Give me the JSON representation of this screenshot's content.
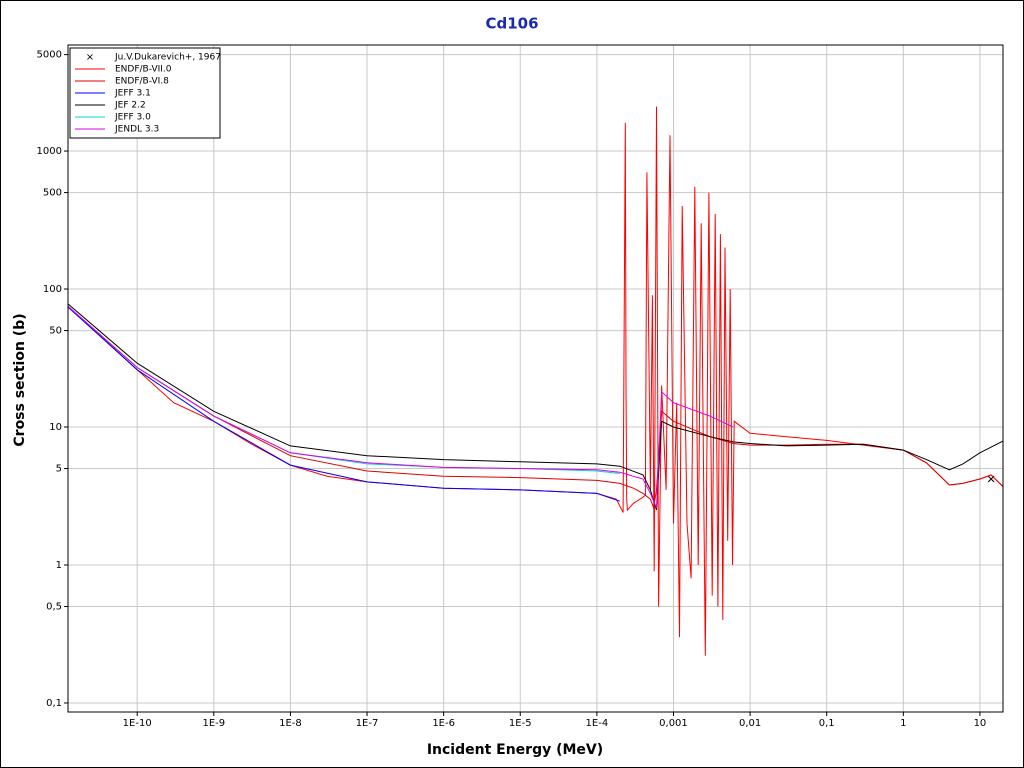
{
  "chart_data": {
    "type": "line",
    "title": "Cd106",
    "x_label": "Incident Energy (MeV)",
    "y_label": "Cross section (b)",
    "log_x": true,
    "log_y": true,
    "grid": true,
    "legend": "upper left",
    "xlim": [
      1.25e-11,
      20
    ],
    "ylim": [
      0.086,
      5870
    ],
    "xticks": [
      {
        "value": 1e-10,
        "label": "1E-10"
      },
      {
        "value": 1e-09,
        "label": "1E-9"
      },
      {
        "value": 1e-08,
        "label": "1E-8"
      },
      {
        "value": 1e-07,
        "label": "1E-7"
      },
      {
        "value": 1e-06,
        "label": "1E-6"
      },
      {
        "value": 1e-05,
        "label": "1E-5"
      },
      {
        "value": 0.0001,
        "label": "1E-4"
      },
      {
        "value": 0.001,
        "label": "0,001"
      },
      {
        "value": 0.01,
        "label": "0,01"
      },
      {
        "value": 0.1,
        "label": "0,1"
      },
      1,
      10
    ],
    "yticks": [
      {
        "value": 0.1,
        "label": "0,1"
      },
      {
        "value": 0.5,
        "label": "0,5"
      },
      1,
      5,
      10,
      50,
      100,
      500,
      1000,
      5000
    ],
    "series": [
      {
        "name": "Ju.V.Dukarevich+, 1967",
        "color": "#000000",
        "marker": "x",
        "x": [
          14
        ],
        "values": [
          4.2
        ]
      },
      {
        "name": "ENDF/B-VII.0",
        "color": "#ff0000",
        "x": [
          1.25e-11,
          3e-11,
          1e-10,
          3e-10,
          1e-09,
          3e-09,
          1e-08,
          3e-08,
          1e-07,
          1e-06,
          1e-05,
          0.0001,
          0.00018,
          0.00022,
          0.000235,
          0.00024,
          0.000245,
          0.00025,
          0.0003,
          0.0004,
          0.00043,
          0.00045,
          0.0005,
          0.00053,
          0.00056,
          0.0006,
          0.00064,
          0.0007,
          0.0008,
          0.0009,
          0.001,
          0.0011,
          0.0012,
          0.0013,
          0.0015,
          0.0017,
          0.0019,
          0.0021,
          0.0023,
          0.0026,
          0.0029,
          0.0032,
          0.0035,
          0.0038,
          0.0041,
          0.0044,
          0.0047,
          0.0051,
          0.0055,
          0.0059,
          0.0062,
          0.01,
          0.03,
          0.1,
          0.3,
          1,
          2,
          4,
          6,
          10,
          14,
          20
        ],
        "values": [
          75,
          48,
          26,
          15,
          11,
          7.6,
          5.3,
          4.4,
          4.0,
          3.6,
          3.5,
          3.3,
          3.0,
          2.4,
          1600,
          20,
          3,
          2.5,
          2.8,
          3.1,
          3.2,
          700,
          3.5,
          90,
          0.9,
          2100,
          0.5,
          20,
          3.5,
          1300,
          2,
          15,
          0.3,
          400,
          2,
          0.8,
          550,
          1,
          300,
          0.22,
          500,
          0.6,
          350,
          0.5,
          250,
          0.4,
          200,
          1.5,
          100,
          1,
          11,
          9,
          8.5,
          8,
          7.4,
          6.8,
          5.5,
          3.8,
          3.9,
          4.2,
          4.5,
          3.7
        ]
      },
      {
        "name": "ENDF/B-VI.8",
        "color": "#e00000",
        "x": [
          1.25e-11,
          1e-10,
          1e-09,
          1e-08,
          1e-07,
          1e-06,
          1e-05,
          0.0001,
          0.0002,
          0.0003,
          0.0004,
          0.0005,
          0.00055,
          0.0006,
          0.0007,
          0.001,
          0.003,
          0.006,
          0.01,
          0.03,
          0.1,
          0.3,
          1,
          2,
          4,
          6,
          10,
          14,
          20
        ],
        "values": [
          75,
          27,
          12,
          6.2,
          4.8,
          4.4,
          4.3,
          4.1,
          3.9,
          3.6,
          3.3,
          3.0,
          2.6,
          3.5,
          13,
          11,
          8.5,
          7.6,
          7.4,
          7.4,
          7.5,
          7.5,
          6.8,
          5.5,
          3.8,
          3.9,
          4.2,
          4.5,
          3.7
        ]
      },
      {
        "name": "JEFF 3.1",
        "color": "#0000ff",
        "x": [
          1.25e-11,
          1e-10,
          1e-09,
          1e-08,
          1e-07,
          1e-06,
          1e-05,
          0.0001,
          0.0002
        ],
        "values": [
          74,
          26,
          11,
          5.3,
          4.0,
          3.6,
          3.5,
          3.3,
          2.9
        ]
      },
      {
        "name": "JEF 2.2",
        "color": "#000000",
        "x": [
          1.25e-11,
          1e-10,
          1e-09,
          1e-08,
          1e-07,
          1e-06,
          1e-05,
          0.0001,
          0.0002,
          0.0004,
          0.0005,
          0.0006,
          0.0007,
          0.001,
          0.003,
          0.006,
          0.01,
          0.03,
          0.1,
          0.3,
          1,
          2,
          4,
          6,
          10,
          20
        ],
        "values": [
          78,
          29,
          13,
          7.3,
          6.2,
          5.8,
          5.6,
          5.4,
          5.2,
          4.5,
          3.5,
          2.5,
          11,
          10,
          8.5,
          7.8,
          7.6,
          7.3,
          7.4,
          7.5,
          6.8,
          5.8,
          4.9,
          5.4,
          6.5,
          7.9
        ]
      },
      {
        "name": "JEFF 3.0",
        "color": "#00d8d8",
        "x": [
          1.25e-11,
          1e-10,
          1e-09,
          1e-08,
          1e-07,
          1e-06,
          1e-05,
          0.0001,
          0.0002
        ],
        "values": [
          75,
          27,
          12,
          6.5,
          5.4,
          5.1,
          5.0,
          4.8,
          4.6
        ]
      },
      {
        "name": "JENDL 3.3",
        "color": "#e000e0",
        "x": [
          1.25e-11,
          1e-10,
          1e-09,
          1e-08,
          1e-07,
          1e-06,
          1e-05,
          0.0001,
          0.0002,
          0.0004,
          0.0005,
          0.0006,
          0.0007,
          0.001,
          0.003,
          0.006
        ],
        "values": [
          75,
          27,
          12,
          6.5,
          5.5,
          5.1,
          5.0,
          4.9,
          4.7,
          4.2,
          3.3,
          2.6,
          18,
          15,
          12,
          10
        ]
      }
    ]
  }
}
